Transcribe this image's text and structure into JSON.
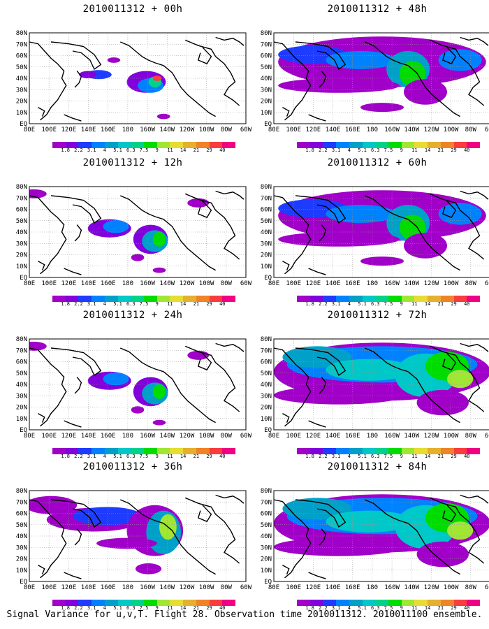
{
  "figure": {
    "caption": "Signal Variance for u,v,T. Flight 28. Observation time 2010011312. 2010011100 ensemble."
  },
  "colorbar": {
    "labels": [
      "1.8",
      "2.2",
      "3.1",
      "4",
      "5.1",
      "6.3",
      "7.5",
      "9",
      "11",
      "14",
      "21",
      "29",
      "40"
    ],
    "colors": [
      "#a000c8",
      "#8200dc",
      "#1e3cff",
      "#0082ff",
      "#00a0c8",
      "#00c8c8",
      "#00d28c",
      "#00dc00",
      "#a0e632",
      "#e6dc32",
      "#e6af2d",
      "#f08228",
      "#fa3c3c",
      "#f00082"
    ]
  },
  "axes": {
    "lat_labels": [
      "80N",
      "70N",
      "60N",
      "50N",
      "40N",
      "30N",
      "20N",
      "10N",
      "EQ"
    ],
    "lon_labels": [
      "80E",
      "100E",
      "120E",
      "140E",
      "160E",
      "180",
      "160W",
      "140W",
      "120W",
      "100W",
      "80W",
      "60W"
    ]
  },
  "panels": [
    {
      "title": "2010011312 + 00h",
      "coverage": "sparse"
    },
    {
      "title": "2010011312 + 48h",
      "coverage": "wide"
    },
    {
      "title": "2010011312 + 12h",
      "coverage": "medium"
    },
    {
      "title": "2010011312 + 60h",
      "coverage": "wide"
    },
    {
      "title": "2010011312 + 24h",
      "coverage": "medium"
    },
    {
      "title": "2010011312 + 72h",
      "coverage": "full"
    },
    {
      "title": "2010011312 + 36h",
      "coverage": "large"
    },
    {
      "title": "2010011312 + 84h",
      "coverage": "full"
    }
  ]
}
